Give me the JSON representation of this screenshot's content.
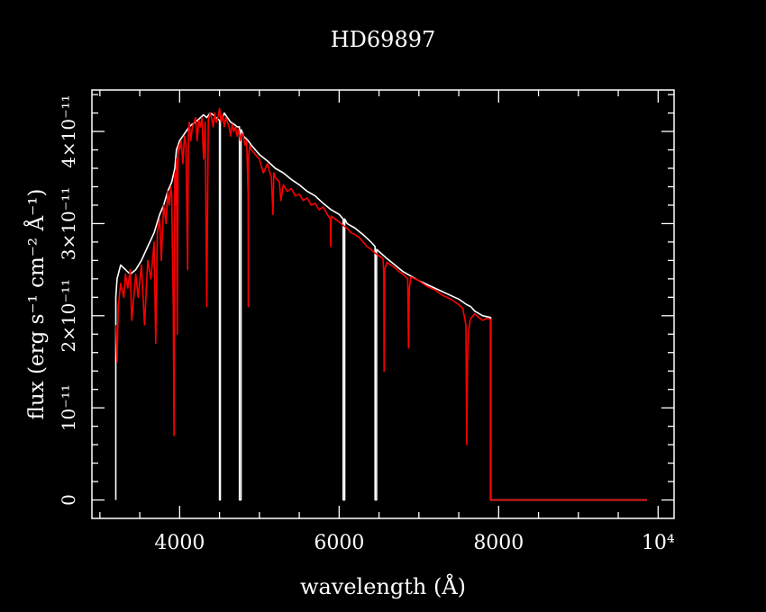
{
  "chart_data": {
    "type": "line",
    "title": "HD69897",
    "xlabel": "wavelength (Å)",
    "ylabel": "flux (erg s⁻¹ cm⁻² Å⁻¹)",
    "xlim": [
      2900,
      10200
    ],
    "ylim": [
      -2e-12,
      4.45e-11
    ],
    "x_log": false,
    "grid": false,
    "legend": "none",
    "x_ticks": [
      {
        "value": 4000,
        "label": "4000"
      },
      {
        "value": 6000,
        "label": "6000"
      },
      {
        "value": 8000,
        "label": "8000"
      },
      {
        "value": 10000,
        "label": "10⁴"
      }
    ],
    "y_ticks": [
      {
        "value": 0,
        "label": "0"
      },
      {
        "value": 1e-11,
        "label": "10⁻¹¹"
      },
      {
        "value": 2e-11,
        "label": "2×10⁻¹¹"
      },
      {
        "value": 3e-11,
        "label": "3×10⁻¹¹"
      },
      {
        "value": 4e-11,
        "label": "4×10⁻¹¹"
      }
    ],
    "series": [
      {
        "color": "#ffffff",
        "x": [
          3200,
          3200,
          3215,
          3260,
          3320,
          3380,
          3450,
          3520,
          3600,
          3680,
          3750,
          3800,
          3850,
          3900,
          3940,
          3950,
          3960,
          3980,
          4000,
          4040,
          4080,
          4120,
          4160,
          4200,
          4260,
          4300,
          4340,
          4380,
          4420,
          4460,
          4500,
          4500,
          4510,
          4510,
          4540,
          4560,
          4600,
          4640,
          4680,
          4720,
          4750,
          4750,
          4770,
          4770,
          4790,
          4800,
          4860,
          4900,
          5000,
          5100,
          5200,
          5300,
          5400,
          5500,
          5600,
          5700,
          5800,
          5900,
          6000,
          6050,
          6050,
          6070,
          6070,
          6100,
          6200,
          6300,
          6400,
          6450,
          6450,
          6470,
          6470,
          6600,
          6700,
          6800,
          6900,
          7000,
          7200,
          7400,
          7500,
          7600,
          7650,
          7700,
          7800,
          7900,
          7900,
          9860
        ],
        "y": [
          0,
          2.2e-11,
          2.4e-11,
          2.55e-11,
          2.5e-11,
          2.45e-11,
          2.5e-11,
          2.6e-11,
          2.75e-11,
          2.9e-11,
          3.1e-11,
          3.2e-11,
          3.35e-11,
          3.45e-11,
          3.6e-11,
          3.7e-11,
          3.8e-11,
          3.85e-11,
          3.9e-11,
          3.95e-11,
          4e-11,
          4.05e-11,
          4.08e-11,
          4.1e-11,
          4.15e-11,
          4.18e-11,
          4.15e-11,
          4.2e-11,
          4.18e-11,
          4.15e-11,
          4.12e-11,
          0,
          0,
          4.12e-11,
          4.15e-11,
          4.2e-11,
          4.15e-11,
          4.1e-11,
          4.08e-11,
          4.05e-11,
          4.05e-11,
          0,
          0,
          4.02e-11,
          3.98e-11,
          3.95e-11,
          3.9e-11,
          3.85e-11,
          3.75e-11,
          3.68e-11,
          3.6e-11,
          3.55e-11,
          3.48e-11,
          3.42e-11,
          3.35e-11,
          3.3e-11,
          3.22e-11,
          3.15e-11,
          3.1e-11,
          3.05e-11,
          0,
          0,
          3.05e-11,
          3e-11,
          2.95e-11,
          2.88e-11,
          2.8e-11,
          2.75e-11,
          0,
          0,
          2.72e-11,
          2.62e-11,
          2.55e-11,
          2.48e-11,
          2.43e-11,
          2.38e-11,
          2.3e-11,
          2.22e-11,
          2.18e-11,
          2.12e-11,
          2.1e-11,
          2.05e-11,
          2e-11,
          1.98e-11,
          0,
          0
        ]
      },
      {
        "color": "#ff0000",
        "x": [
          3200,
          3215,
          3230,
          3260,
          3300,
          3320,
          3350,
          3380,
          3400,
          3450,
          3480,
          3520,
          3560,
          3600,
          3640,
          3680,
          3700,
          3720,
          3750,
          3770,
          3800,
          3830,
          3850,
          3870,
          3890,
          3900,
          3920,
          3930,
          3940,
          3950,
          3960,
          3970,
          3980,
          3990,
          4000,
          4020,
          4040,
          4060,
          4080,
          4100,
          4110,
          4120,
          4140,
          4160,
          4180,
          4200,
          4220,
          4240,
          4260,
          4280,
          4300,
          4320,
          4340,
          4360,
          4380,
          4400,
          4420,
          4440,
          4460,
          4480,
          4500,
          4520,
          4540,
          4560,
          4580,
          4600,
          4620,
          4640,
          4660,
          4680,
          4700,
          4720,
          4740,
          4760,
          4780,
          4800,
          4820,
          4840,
          4860,
          4861,
          4862,
          4880,
          4900,
          4950,
          5000,
          5050,
          5100,
          5150,
          5170,
          5180,
          5200,
          5250,
          5270,
          5300,
          5350,
          5400,
          5450,
          5500,
          5550,
          5600,
          5650,
          5700,
          5750,
          5800,
          5850,
          5890,
          5895,
          5900,
          5950,
          6000,
          6050,
          6100,
          6150,
          6200,
          6250,
          6300,
          6350,
          6400,
          6450,
          6500,
          6550,
          6560,
          6563,
          6570,
          6600,
          6650,
          6700,
          6750,
          6800,
          6860,
          6870,
          6880,
          6900,
          6950,
          7000,
          7050,
          7100,
          7150,
          7200,
          7250,
          7300,
          7350,
          7400,
          7450,
          7500,
          7550,
          7590,
          7600,
          7610,
          7620,
          7640,
          7660,
          7680,
          7700,
          7750,
          7800,
          7850,
          7900,
          7900,
          9860
        ],
        "y": [
          1.9e-11,
          1.5e-11,
          2.1e-11,
          2.35e-11,
          2.2e-11,
          2.45e-11,
          2.3e-11,
          2.5e-11,
          1.95e-11,
          2.45e-11,
          2.2e-11,
          2.55e-11,
          1.9e-11,
          2.6e-11,
          2.4e-11,
          2.8e-11,
          1.7e-11,
          2.9e-11,
          3.05e-11,
          2.6e-11,
          3.2e-11,
          3e-11,
          3.35e-11,
          3.2e-11,
          3.4e-11,
          3.3e-11,
          2.1e-11,
          7e-12,
          3.55e-11,
          3.2e-11,
          3.7e-11,
          1.8e-11,
          3.75e-11,
          3.85e-11,
          3.8e-11,
          3.9e-11,
          3.65e-11,
          3.95e-11,
          3.85e-11,
          2.5e-11,
          4e-11,
          4.1e-11,
          3.9e-11,
          4.05e-11,
          4.1e-11,
          4.15e-11,
          3.9e-11,
          4.12e-11,
          4.05e-11,
          4.15e-11,
          3.7e-11,
          4.1e-11,
          2.1e-11,
          4.12e-11,
          4.2e-11,
          4.15e-11,
          4.05e-11,
          4.2e-11,
          4.1e-11,
          4.15e-11,
          4.25e-11,
          4.1e-11,
          4.18e-11,
          4.05e-11,
          4.15e-11,
          4.1e-11,
          4.05e-11,
          3.95e-11,
          4.08e-11,
          4e-11,
          4.05e-11,
          3.95e-11,
          4.02e-11,
          3.9e-11,
          3.98e-11,
          3.95e-11,
          3.85e-11,
          3.9e-11,
          3.3e-11,
          2.1e-11,
          3.7e-11,
          3.85e-11,
          3.8e-11,
          3.75e-11,
          3.7e-11,
          3.55e-11,
          3.65e-11,
          3.5e-11,
          3.1e-11,
          3.55e-11,
          3.5e-11,
          3.45e-11,
          3.25e-11,
          3.42e-11,
          3.35e-11,
          3.38e-11,
          3.3e-11,
          3.32e-11,
          3.25e-11,
          3.28e-11,
          3.2e-11,
          3.22e-11,
          3.15e-11,
          3.18e-11,
          3.1e-11,
          3.05e-11,
          2.75e-11,
          3.08e-11,
          3.05e-11,
          3.02e-11,
          2.98e-11,
          2.95e-11,
          2.9e-11,
          2.88e-11,
          2.85e-11,
          2.8e-11,
          2.75e-11,
          2.72e-11,
          2.68e-11,
          2.65e-11,
          2.62e-11,
          2.45e-11,
          1.4e-11,
          2.5e-11,
          2.58e-11,
          2.55e-11,
          2.52e-11,
          2.48e-11,
          2.45e-11,
          2.4e-11,
          1.65e-11,
          2.3e-11,
          2.42e-11,
          2.4e-11,
          2.38e-11,
          2.35e-11,
          2.32e-11,
          2.3e-11,
          2.28e-11,
          2.25e-11,
          2.22e-11,
          2.2e-11,
          2.18e-11,
          2.15e-11,
          2.12e-11,
          2.08e-11,
          1.9e-11,
          6e-12,
          1.5e-11,
          1.8e-11,
          1.95e-11,
          1.98e-11,
          2e-11,
          2.02e-11,
          1.98e-11,
          1.95e-11,
          1.97e-11,
          1.96e-11,
          0,
          0
        ]
      }
    ]
  }
}
